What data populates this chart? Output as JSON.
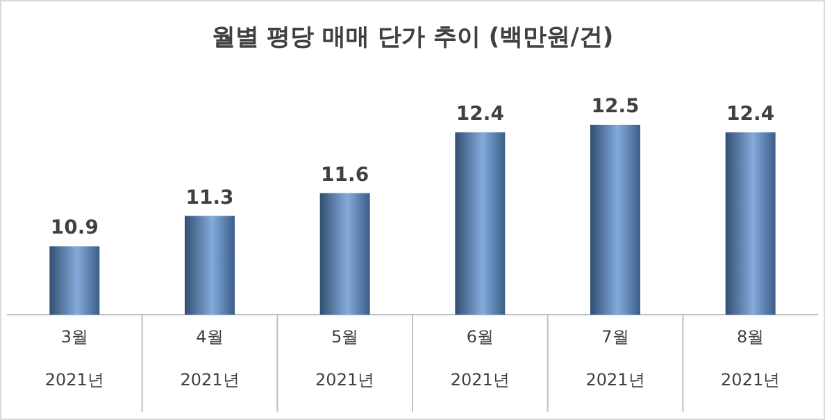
{
  "chart_data": {
    "type": "bar",
    "title": "월별 평당 매매 단가 추이 (백만원/건)",
    "categories": [
      "3월",
      "4월",
      "5월",
      "6월",
      "7월",
      "8월"
    ],
    "annotations": [
      "2021년",
      "2021년",
      "2021년",
      "2021년",
      "2021년",
      "2021년"
    ],
    "values": [
      10.9,
      11.3,
      11.6,
      12.4,
      12.5,
      12.4
    ],
    "color": "#5b8fd0",
    "ylim": [
      10,
      12.5
    ],
    "data_labels": true
  }
}
